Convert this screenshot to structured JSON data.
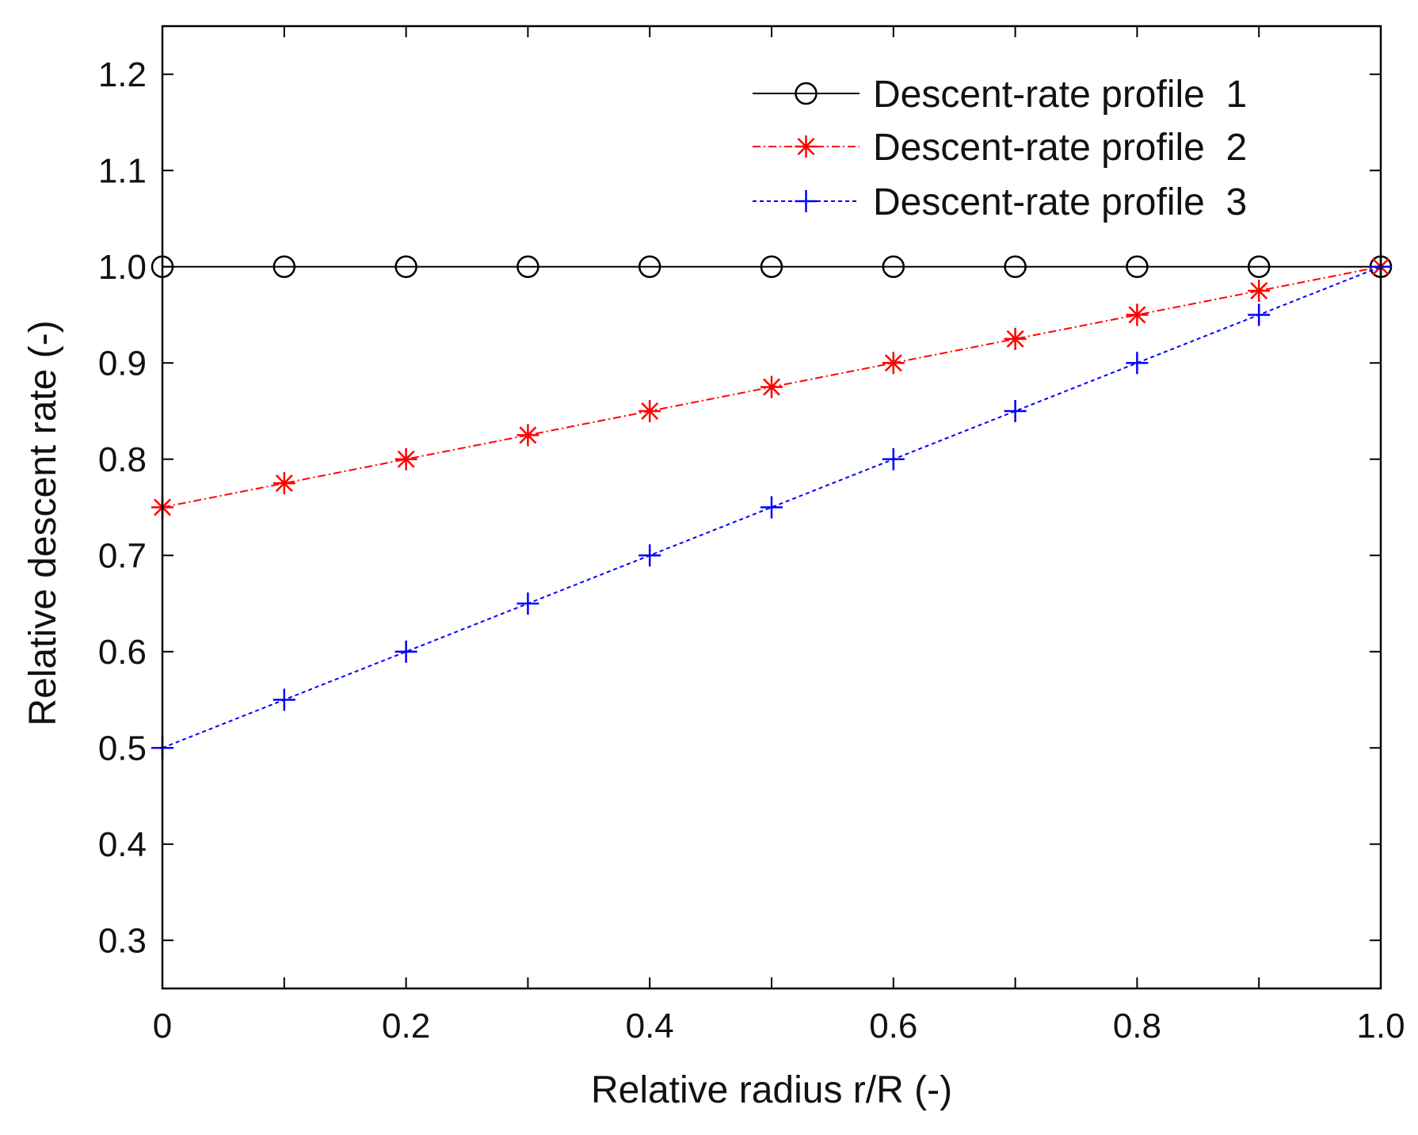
{
  "chart_data": {
    "type": "line",
    "title": "",
    "xlabel": "Relative radius r/R (-)",
    "ylabel": "Relative descent rate (-)",
    "xlim": [
      0,
      1.0
    ],
    "ylim": [
      0.25,
      1.25
    ],
    "xticks": [
      {
        "value": 0,
        "label": "0"
      },
      {
        "value": 0.2,
        "label": "0.2"
      },
      {
        "value": 0.4,
        "label": "0.4"
      },
      {
        "value": 0.6,
        "label": "0.6"
      },
      {
        "value": 0.8,
        "label": "0.8"
      },
      {
        "value": 1.0,
        "label": "1.0"
      }
    ],
    "yticks": [
      {
        "value": 0.3,
        "label": "0.3"
      },
      {
        "value": 0.4,
        "label": "0.4"
      },
      {
        "value": 0.5,
        "label": "0.5"
      },
      {
        "value": 0.6,
        "label": "0.6"
      },
      {
        "value": 0.7,
        "label": "0.7"
      },
      {
        "value": 0.8,
        "label": "0.8"
      },
      {
        "value": 0.9,
        "label": "0.9"
      },
      {
        "value": 1.0,
        "label": "1.0"
      },
      {
        "value": 1.1,
        "label": "1.1"
      },
      {
        "value": 1.2,
        "label": "1.2"
      }
    ],
    "minor_xticks": [
      0.1,
      0.3,
      0.5,
      0.7,
      0.9
    ],
    "grid": false,
    "legend_position": "top-right",
    "x": [
      0,
      0.1,
      0.2,
      0.3,
      0.4,
      0.5,
      0.6,
      0.7,
      0.8,
      0.9,
      1.0
    ],
    "series": [
      {
        "name": "Descent-rate profile  1",
        "color": "#000000",
        "marker": "circle",
        "dash": "solid",
        "values": [
          1.0,
          1.0,
          1.0,
          1.0,
          1.0,
          1.0,
          1.0,
          1.0,
          1.0,
          1.0,
          1.0
        ]
      },
      {
        "name": "Descent-rate profile  2",
        "color": "#ff0000",
        "marker": "asterisk",
        "dash": "dashdot",
        "values": [
          0.75,
          0.775,
          0.8,
          0.825,
          0.85,
          0.875,
          0.9,
          0.925,
          0.95,
          0.975,
          1.0
        ]
      },
      {
        "name": "Descent-rate profile  3",
        "color": "#0000ff",
        "marker": "plus",
        "dash": "dotted",
        "values": [
          0.5,
          0.55,
          0.6,
          0.65,
          0.7,
          0.75,
          0.8,
          0.85,
          0.9,
          0.95,
          1.0
        ]
      }
    ]
  }
}
